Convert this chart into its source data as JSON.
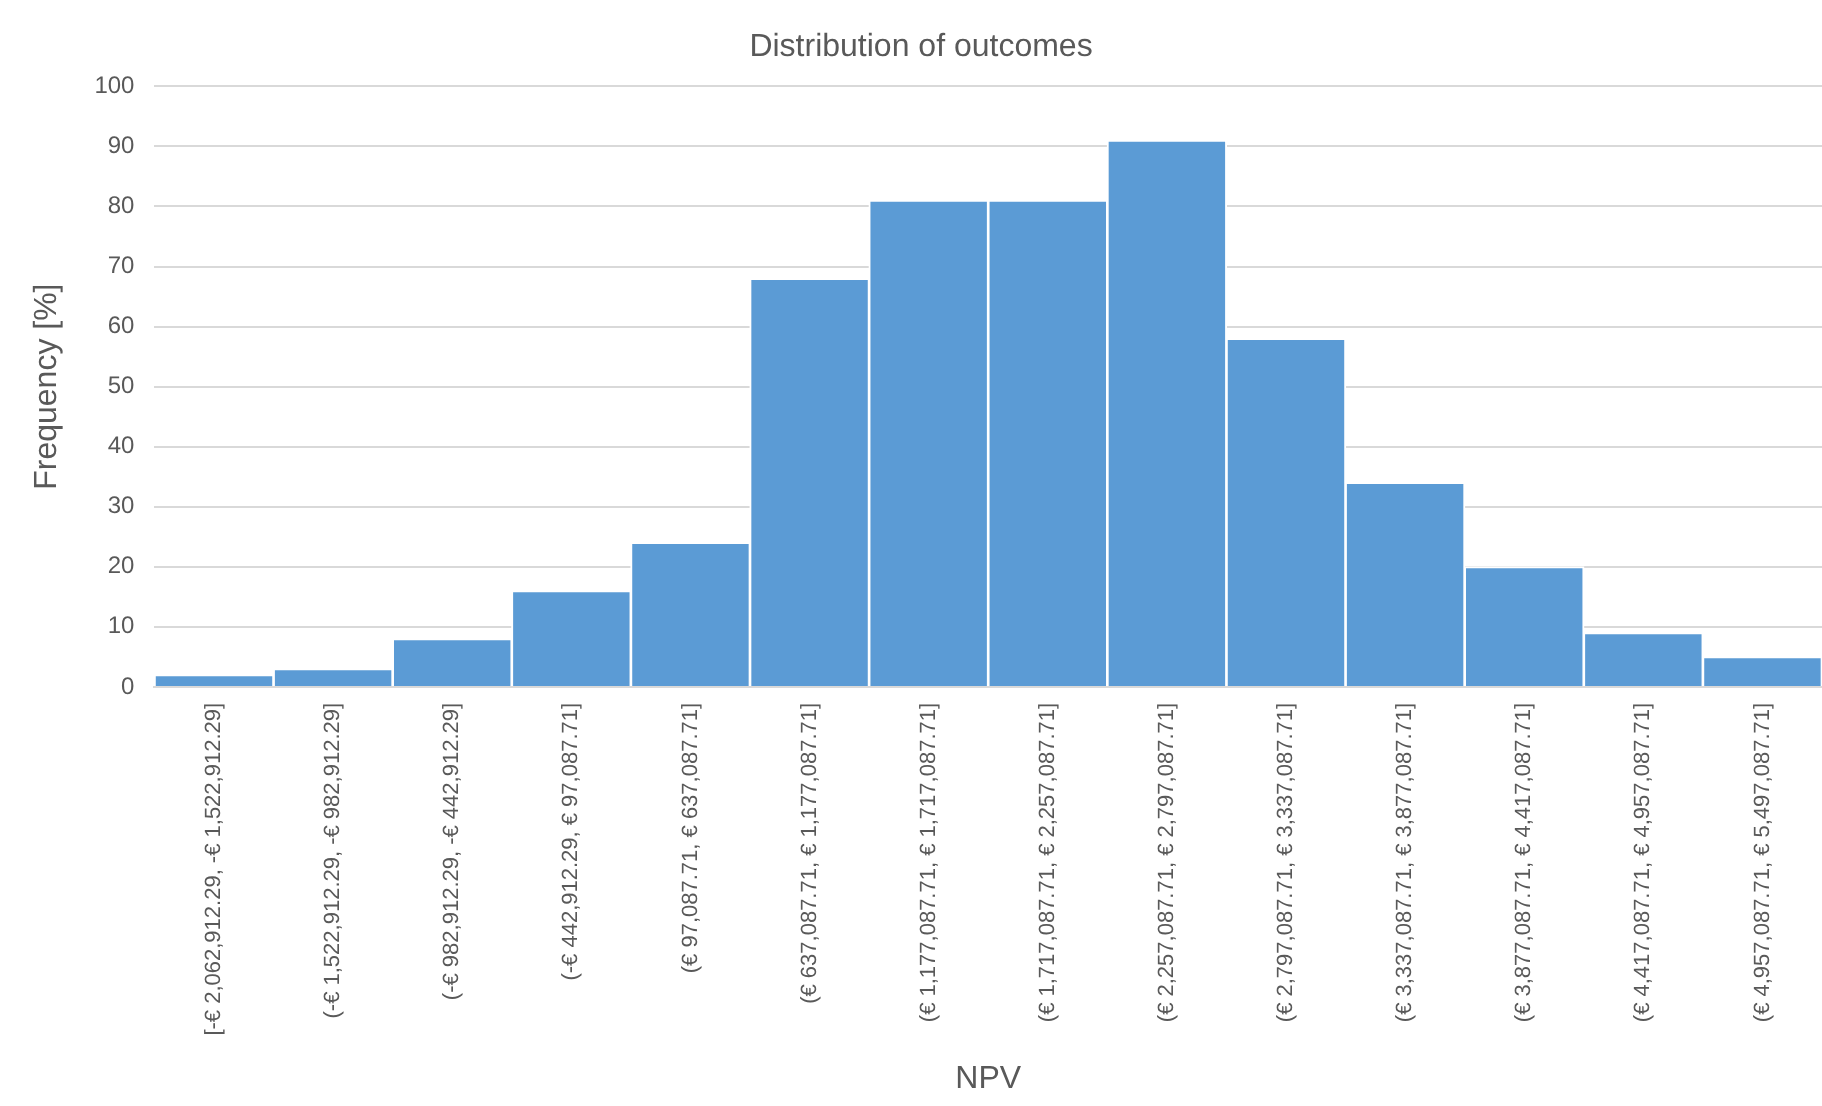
{
  "chart_data": {
    "type": "bar",
    "title": "Distribution of outcomes",
    "xlabel": "NPV",
    "ylabel": "Frequency [%]",
    "categories": [
      "[-€ 2,062,912.29, -€ 1,522,912.29]",
      "(-€ 1,522,912.29, -€ 982,912.29]",
      "(-€ 982,912.29, -€ 442,912.29]",
      "(-€ 442,912.29, € 97,087.71]",
      "(€ 97,087.71, € 637,087.71]",
      "(€ 637,087.71, € 1,177,087.71]",
      "(€ 1,177,087.71, € 1,717,087.71]",
      "(€ 1,717,087.71, € 2,257,087.71]",
      "(€ 2,257,087.71, € 2,797,087.71]",
      "(€ 2,797,087.71, € 3,337,087.71]",
      "(€ 3,337,087.71, € 3,877,087.71]",
      "(€ 3,877,087.71, € 4,417,087.71]",
      "(€ 4,417,087.71, € 4,957,087.71]",
      "(€ 4,957,087.71, € 5,497,087.71]"
    ],
    "values": [
      2,
      3,
      8,
      16,
      24,
      68,
      81,
      81,
      91,
      58,
      34,
      20,
      9,
      5
    ],
    "color": "#5b9bd5",
    "ylim": [
      0,
      100
    ],
    "yticks": [
      0,
      10,
      20,
      30,
      40,
      50,
      60,
      70,
      80,
      90,
      100
    ],
    "grid": "y"
  }
}
